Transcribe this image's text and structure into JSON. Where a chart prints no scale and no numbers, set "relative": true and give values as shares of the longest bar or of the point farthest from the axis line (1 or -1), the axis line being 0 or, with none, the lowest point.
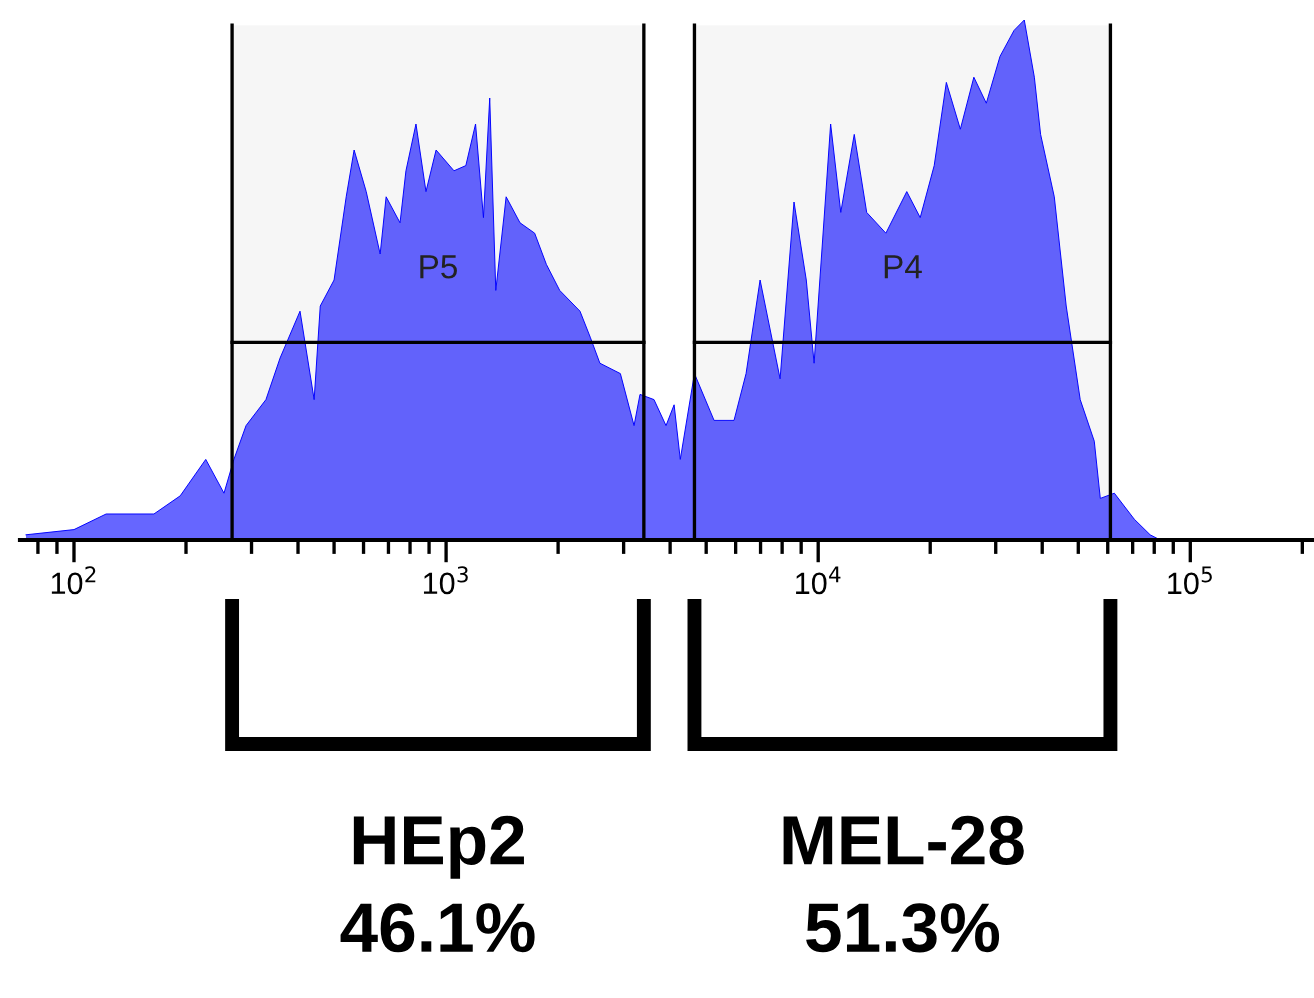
{
  "chart_data": {
    "type": "area",
    "relative": true,
    "log": "x",
    "xlim": [
      71.6,
      215000
    ],
    "xticks": [
      {
        "value": 100,
        "label": "10$^{2}$"
      },
      {
        "value": 1000,
        "label": "10$^{3}$"
      },
      {
        "value": 10000,
        "label": "10$^{4}$"
      },
      {
        "value": 100000,
        "label": "10$^{5}$"
      }
    ],
    "tick_labels": "x",
    "grid": false,
    "legend": false,
    "series": [
      {
        "color": "#0000ff",
        "x": [
          74.3,
          100,
          122,
          164,
          193,
          226,
          253,
          269,
          290,
          328,
          358,
          405,
          442,
          459,
          500,
          539,
          566,
          610,
          665,
          690,
          752,
          780,
          830,
          883,
          940,
          1050,
          1130,
          1200,
          1260,
          1310,
          1360,
          1450,
          1580,
          1730,
          1860,
          2020,
          2290,
          2440,
          2590,
          2940,
          3200,
          3320,
          3620,
          3900,
          4100,
          4260,
          4650,
          5250,
          5940,
          6400,
          6980,
          7900,
          8610,
          9290,
          9750,
          10800,
          11500,
          12500,
          13500,
          15200,
          17300,
          18800,
          20500,
          22100,
          24100,
          26200,
          28300,
          30800,
          33600,
          35800,
          38100,
          39600,
          43100,
          46400,
          50600,
          55200,
          57300,
          62500,
          70700,
          78000,
          83000
        ],
        "values": [
          0.01,
          0.02,
          0.05,
          0.05,
          0.085,
          0.155,
          0.09,
          0.155,
          0.22,
          0.27,
          0.35,
          0.44,
          0.27,
          0.45,
          0.5,
          0.66,
          0.75,
          0.67,
          0.55,
          0.66,
          0.61,
          0.71,
          0.8,
          0.67,
          0.75,
          0.71,
          0.72,
          0.8,
          0.62,
          0.85,
          0.48,
          0.66,
          0.61,
          0.59,
          0.53,
          0.48,
          0.44,
          0.39,
          0.34,
          0.32,
          0.22,
          0.28,
          0.27,
          0.22,
          0.26,
          0.155,
          0.32,
          0.23,
          0.23,
          0.32,
          0.5,
          0.31,
          0.65,
          0.5,
          0.34,
          0.8,
          0.63,
          0.78,
          0.63,
          0.59,
          0.67,
          0.62,
          0.72,
          0.88,
          0.79,
          0.89,
          0.84,
          0.93,
          0.98,
          1.0,
          0.89,
          0.78,
          0.66,
          0.45,
          0.27,
          0.19,
          0.08,
          0.09,
          0.04,
          0.01,
          0
        ]
      }
    ],
    "bands": [
      {
        "axis": "x",
        "from": 266,
        "to": 3400,
        "label": "P5",
        "color": "#000000"
      },
      {
        "axis": "x",
        "from": 4650,
        "to": 61000,
        "label": "P4",
        "color": "#000000"
      }
    ],
    "annotations": [
      "HEp2\n46.1%",
      "MEL-28\n51.3%"
    ]
  }
}
